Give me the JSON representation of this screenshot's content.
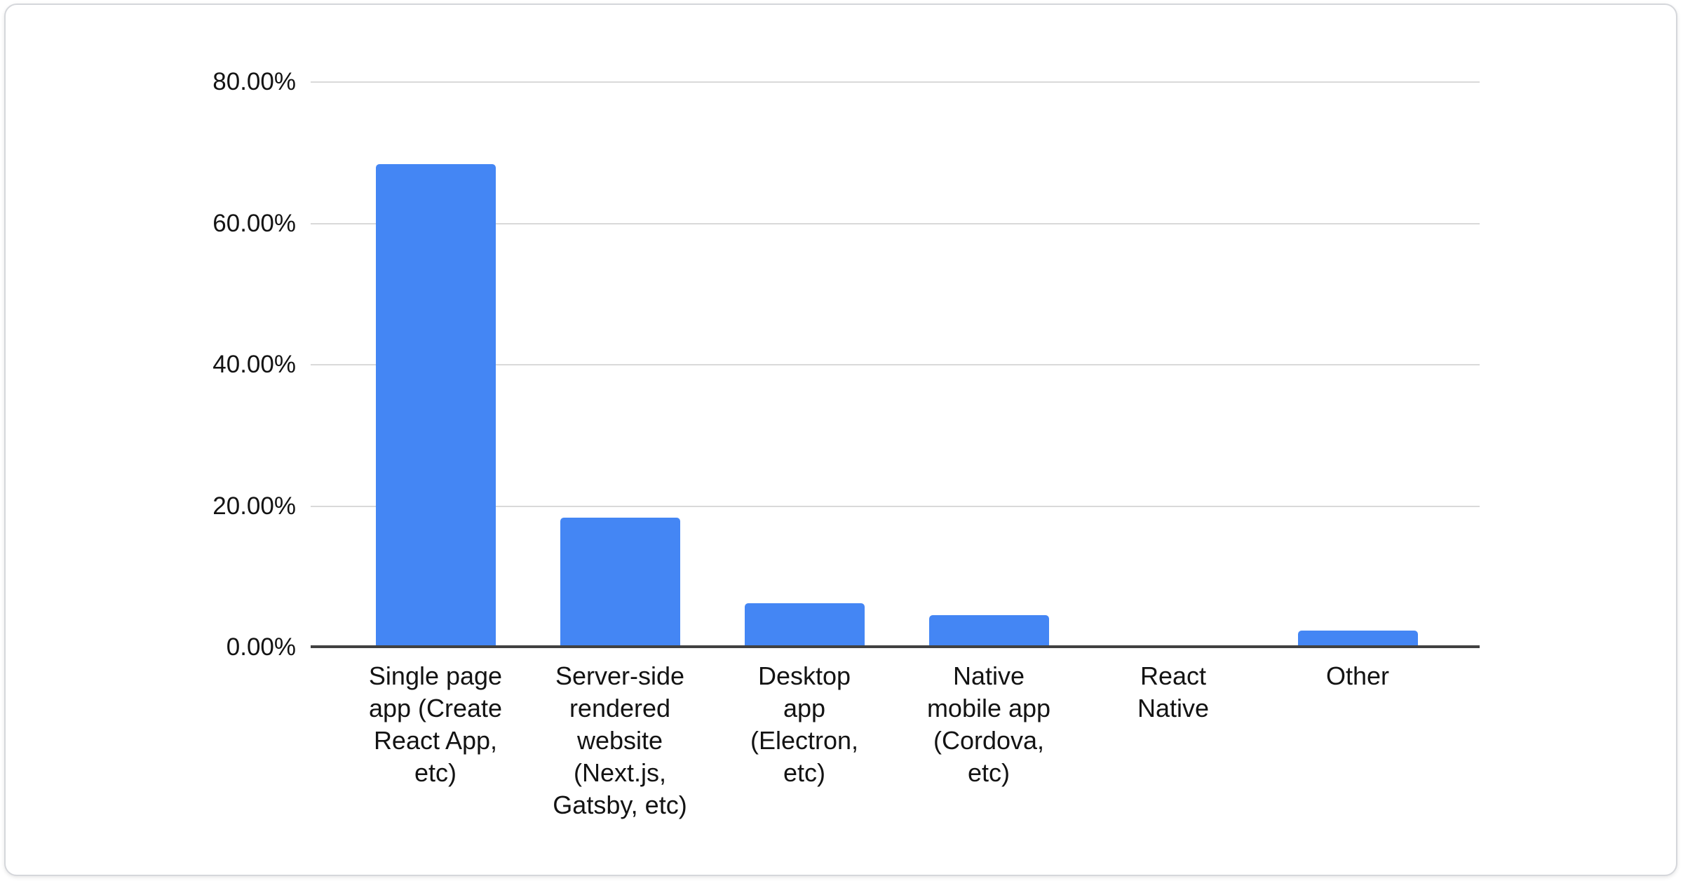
{
  "chart_data": {
    "type": "bar",
    "title": "",
    "xlabel": "",
    "ylabel": "",
    "unit": "%",
    "categories": [
      "Single page app (Create React App, etc)",
      "Server-side rendered website (Next.js, Gatsby, etc)",
      "Desktop app (Electron, etc)",
      "Native mobile app (Cordova, etc)",
      "React Native",
      "Other"
    ],
    "category_lines": [
      [
        "Single page",
        "app (Create",
        "React App,",
        "etc)"
      ],
      [
        "Server-side",
        "rendered",
        "website",
        "(Next.js,",
        "Gatsby, etc)"
      ],
      [
        "Desktop",
        "app",
        "(Electron,",
        "etc)"
      ],
      [
        "Native",
        "mobile app",
        "(Cordova,",
        "etc)"
      ],
      [
        "React",
        "Native"
      ],
      [
        "Other"
      ]
    ],
    "values": [
      68.4,
      18.4,
      6.3,
      4.6,
      0,
      2.4
    ],
    "ylim": [
      0,
      80
    ],
    "yticks": [
      0,
      20,
      40,
      60,
      80
    ],
    "ytick_labels": [
      "0.00%",
      "20.00%",
      "40.00%",
      "60.00%",
      "80.00%"
    ],
    "grid": true,
    "legend": "none",
    "colors": {
      "bar": "#4486F4",
      "gridline": "#d9d9d9",
      "axis": "#414141",
      "label": "#131313"
    }
  }
}
